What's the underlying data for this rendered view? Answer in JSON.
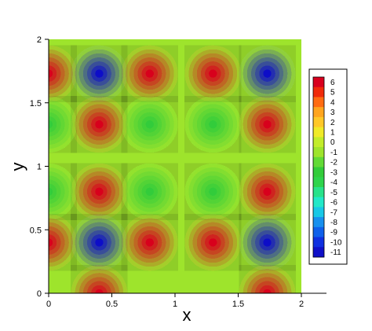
{
  "chart_data": {
    "type": "heatmap",
    "title": "",
    "xlabel": "x",
    "ylabel": "y",
    "xlim": [
      0,
      2
    ],
    "ylim": [
      0,
      2
    ],
    "x_ticks": [
      "0",
      "0.5",
      "1",
      "1.5",
      "2"
    ],
    "y_ticks": [
      "0",
      "0.5",
      "1",
      "1.5",
      "2"
    ],
    "grid": false,
    "legend": {
      "placement": "right",
      "levels": [
        "6",
        "5",
        "4",
        "3",
        "2",
        "1",
        "0",
        "-1",
        "-2",
        "-3",
        "-4",
        "-5",
        "-6",
        "-7",
        "-8",
        "-9",
        "-10",
        "-11"
      ],
      "colors": [
        "#d8001e",
        "#f02a0a",
        "#ff6b12",
        "#ffa51e",
        "#ffc828",
        "#f0ea28",
        "#c2ec2a",
        "#9ee42c",
        "#62da36",
        "#32cc3a",
        "#2ed44c",
        "#28e28a",
        "#22e8c8",
        "#18c8e6",
        "#1890ee",
        "#1060ea",
        "#1030e0",
        "#1010c8"
      ]
    },
    "extrema": [
      {
        "x": 0.0,
        "y": 1.73,
        "value": 6
      },
      {
        "x": 0.4,
        "y": 1.73,
        "value": -11
      },
      {
        "x": 0.8,
        "y": 1.73,
        "value": 6
      },
      {
        "x": 1.3,
        "y": 1.73,
        "value": 6
      },
      {
        "x": 1.73,
        "y": 1.73,
        "value": -11
      },
      {
        "x": 0.4,
        "y": 1.33,
        "value": 6
      },
      {
        "x": 0.8,
        "y": 1.33,
        "value": -3
      },
      {
        "x": 1.3,
        "y": 1.33,
        "value": -3
      },
      {
        "x": 1.73,
        "y": 1.33,
        "value": 6
      },
      {
        "x": 0.0,
        "y": 1.33,
        "value": -3
      },
      {
        "x": 0.4,
        "y": 0.8,
        "value": 6
      },
      {
        "x": 0.8,
        "y": 0.8,
        "value": -3
      },
      {
        "x": 1.3,
        "y": 0.8,
        "value": -3
      },
      {
        "x": 1.73,
        "y": 0.8,
        "value": 6
      },
      {
        "x": 0.0,
        "y": 0.8,
        "value": -3
      },
      {
        "x": 0.0,
        "y": 0.4,
        "value": 6
      },
      {
        "x": 0.4,
        "y": 0.4,
        "value": -11
      },
      {
        "x": 0.8,
        "y": 0.4,
        "value": 6
      },
      {
        "x": 1.3,
        "y": 0.4,
        "value": 6
      },
      {
        "x": 1.73,
        "y": 0.4,
        "value": -11
      },
      {
        "x": 0.4,
        "y": 0.0,
        "value": 6
      },
      {
        "x": 1.73,
        "y": 0.0,
        "value": 6
      }
    ]
  }
}
